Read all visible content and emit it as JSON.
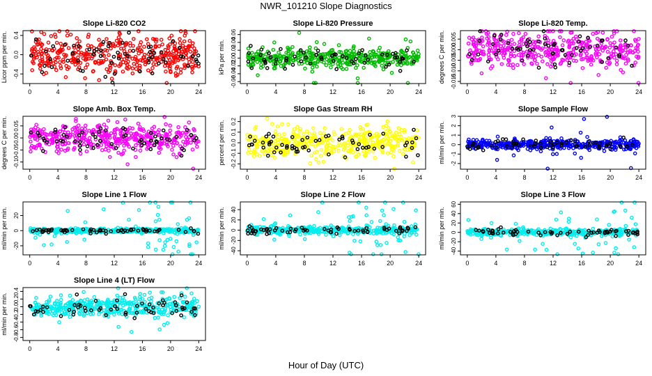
{
  "figure": {
    "title": "NWR_101210  Slope Diagnostics",
    "xlabel": "Hour of Day (UTC)"
  },
  "chart_data": [
    {
      "type": "scatter",
      "title": "Slope Li-820 CO2",
      "ylabel": "Licor ppm per min.",
      "color": "#ff0000",
      "point_count": 420,
      "spread": 0.2,
      "outlier_spread": 0.45,
      "xlim": [
        0,
        24
      ],
      "ylim": [
        -0.6,
        0.5
      ],
      "xticks": [
        0,
        4,
        8,
        12,
        16,
        20,
        24
      ],
      "yticks": [
        -0.4,
        0.0,
        0.4
      ],
      "yticklabels": [
        "-0.4",
        "0.0",
        "0.4"
      ]
    },
    {
      "type": "scatter",
      "title": "Slope Li-820 Pressure",
      "ylabel": "kPa per min.",
      "color": "#00bb00",
      "point_count": 420,
      "spread": 0.012,
      "outlier_spread": 0.05,
      "xlim": [
        0,
        24
      ],
      "ylim": [
        -0.065,
        0.07
      ],
      "xticks": [
        0,
        4,
        8,
        12,
        16,
        20,
        24
      ],
      "yticks": [
        -0.06,
        -0.04,
        -0.02,
        0.0,
        0.02,
        0.04,
        0.06
      ],
      "yticklabels": [
        "-0.06",
        "-0.04",
        "-0.02",
        "0.00",
        "0.02",
        "0.04",
        "0.06"
      ]
    },
    {
      "type": "scatter",
      "title": "Slope Li-820 Temp.",
      "ylabel": "degrees C per min.",
      "color": "#ff00ff",
      "point_count": 420,
      "spread": 0.004,
      "outlier_spread": 0.012,
      "xlim": [
        0,
        24
      ],
      "ylim": [
        -0.016,
        0.009
      ],
      "xticks": [
        0,
        4,
        8,
        12,
        16,
        20,
        24
      ],
      "yticks": [
        -0.015,
        -0.01,
        -0.005,
        0.0,
        0.005
      ],
      "yticklabels": [
        "-0.015",
        "-0.010",
        "-0.005",
        "0.000",
        "0.005"
      ]
    },
    {
      "type": "scatter",
      "title": "Slope Amb. Box Temp.",
      "ylabel": "degrees C per min.",
      "color": "#ff00ff",
      "point_count": 420,
      "spread": 0.03,
      "outlier_spread": 0.08,
      "xlim": [
        0,
        24
      ],
      "ylim": [
        -0.13,
        0.09
      ],
      "xticks": [
        0,
        4,
        8,
        12,
        16,
        20,
        24
      ],
      "yticks": [
        -0.1,
        -0.05,
        0.0,
        0.05
      ],
      "yticklabels": [
        "-0.10",
        "-0.05",
        "0.00",
        "0.05"
      ]
    },
    {
      "type": "scatter",
      "title": "Slope Gas Stream RH",
      "ylabel": "percent per min.",
      "color": "#ffff00",
      "point_count": 420,
      "spread": 0.07,
      "outlier_spread": 0.14,
      "xlim": [
        0,
        24
      ],
      "ylim": [
        -0.25,
        0.25
      ],
      "xticks": [
        0,
        4,
        8,
        12,
        16,
        20,
        24
      ],
      "yticks": [
        -0.2,
        -0.1,
        0.0,
        0.1,
        0.2
      ],
      "yticklabels": [
        "-0.2",
        "-0.1",
        "0.0",
        "0.1",
        "0.2"
      ]
    },
    {
      "type": "scatter",
      "title": "Slope Sample Flow",
      "ylabel": "ml/min per min.",
      "color": "#0000ff",
      "point_count": 420,
      "spread": 0.25,
      "outlier_spread": 2.0,
      "xlim": [
        0,
        24
      ],
      "ylim": [
        -2.6,
        3.0
      ],
      "xticks": [
        0,
        4,
        8,
        12,
        16,
        20,
        24
      ],
      "yticks": [
        -2,
        -1,
        0,
        1,
        2,
        3
      ],
      "yticklabels": [
        "-2",
        "-1",
        "0",
        "1",
        "2",
        "3"
      ]
    },
    {
      "type": "scatter",
      "title": "Slope Line 1 Flow",
      "ylabel": "ml/min per min.",
      "color": "#00eeee",
      "point_count": 420,
      "spread": 1.5,
      "outlier_spread": 25,
      "xlim": [
        0,
        24
      ],
      "ylim": [
        -32,
        38
      ],
      "xticks": [
        0,
        4,
        8,
        12,
        16,
        20,
        24
      ],
      "yticks": [
        -20,
        0,
        20
      ],
      "yticklabels": [
        "-20",
        "0",
        "20"
      ]
    },
    {
      "type": "scatter",
      "title": "Slope Line 2 Flow",
      "ylabel": "ml/min per min.",
      "color": "#00eeee",
      "point_count": 420,
      "spread": 3.5,
      "outlier_spread": 35,
      "xlim": [
        0,
        24
      ],
      "ylim": [
        -48,
        55
      ],
      "xticks": [
        0,
        4,
        8,
        12,
        16,
        20,
        24
      ],
      "yticks": [
        -40,
        -20,
        0,
        20,
        40
      ],
      "yticklabels": [
        "-40",
        "-20",
        "0",
        "20",
        "40"
      ]
    },
    {
      "type": "scatter",
      "title": "Slope Line 3 Flow",
      "ylabel": "ml/min per min.",
      "color": "#00eeee",
      "point_count": 420,
      "spread": 3.5,
      "outlier_spread": 35,
      "xlim": [
        0,
        24
      ],
      "ylim": [
        -48,
        65
      ],
      "xticks": [
        0,
        4,
        8,
        12,
        16,
        20,
        24
      ],
      "yticks": [
        -40,
        -20,
        0,
        20,
        40,
        60
      ],
      "yticklabels": [
        "-40",
        "-20",
        "0",
        "20",
        "40",
        "60"
      ]
    },
    {
      "type": "scatter",
      "title": "Slope Line 4 (LT) Flow",
      "ylabel": "ml/min per min.",
      "color": "#00eeee",
      "point_count": 420,
      "spread": 0.12,
      "outlier_spread": 0.35,
      "xlim": [
        0,
        24
      ],
      "ylim": [
        -0.88,
        0.5
      ],
      "xticks": [
        0,
        4,
        8,
        12,
        16,
        20,
        24
      ],
      "yticks": [
        -0.8,
        -0.6,
        -0.4,
        -0.2,
        0.0,
        0.2,
        0.4
      ],
      "yticklabels": [
        "-0.8",
        "-0.6",
        "-0.4",
        "-0.2",
        "0.0",
        "0.2",
        "0.4"
      ]
    }
  ],
  "overlay": {
    "color": "#000000",
    "point_count": 60
  }
}
